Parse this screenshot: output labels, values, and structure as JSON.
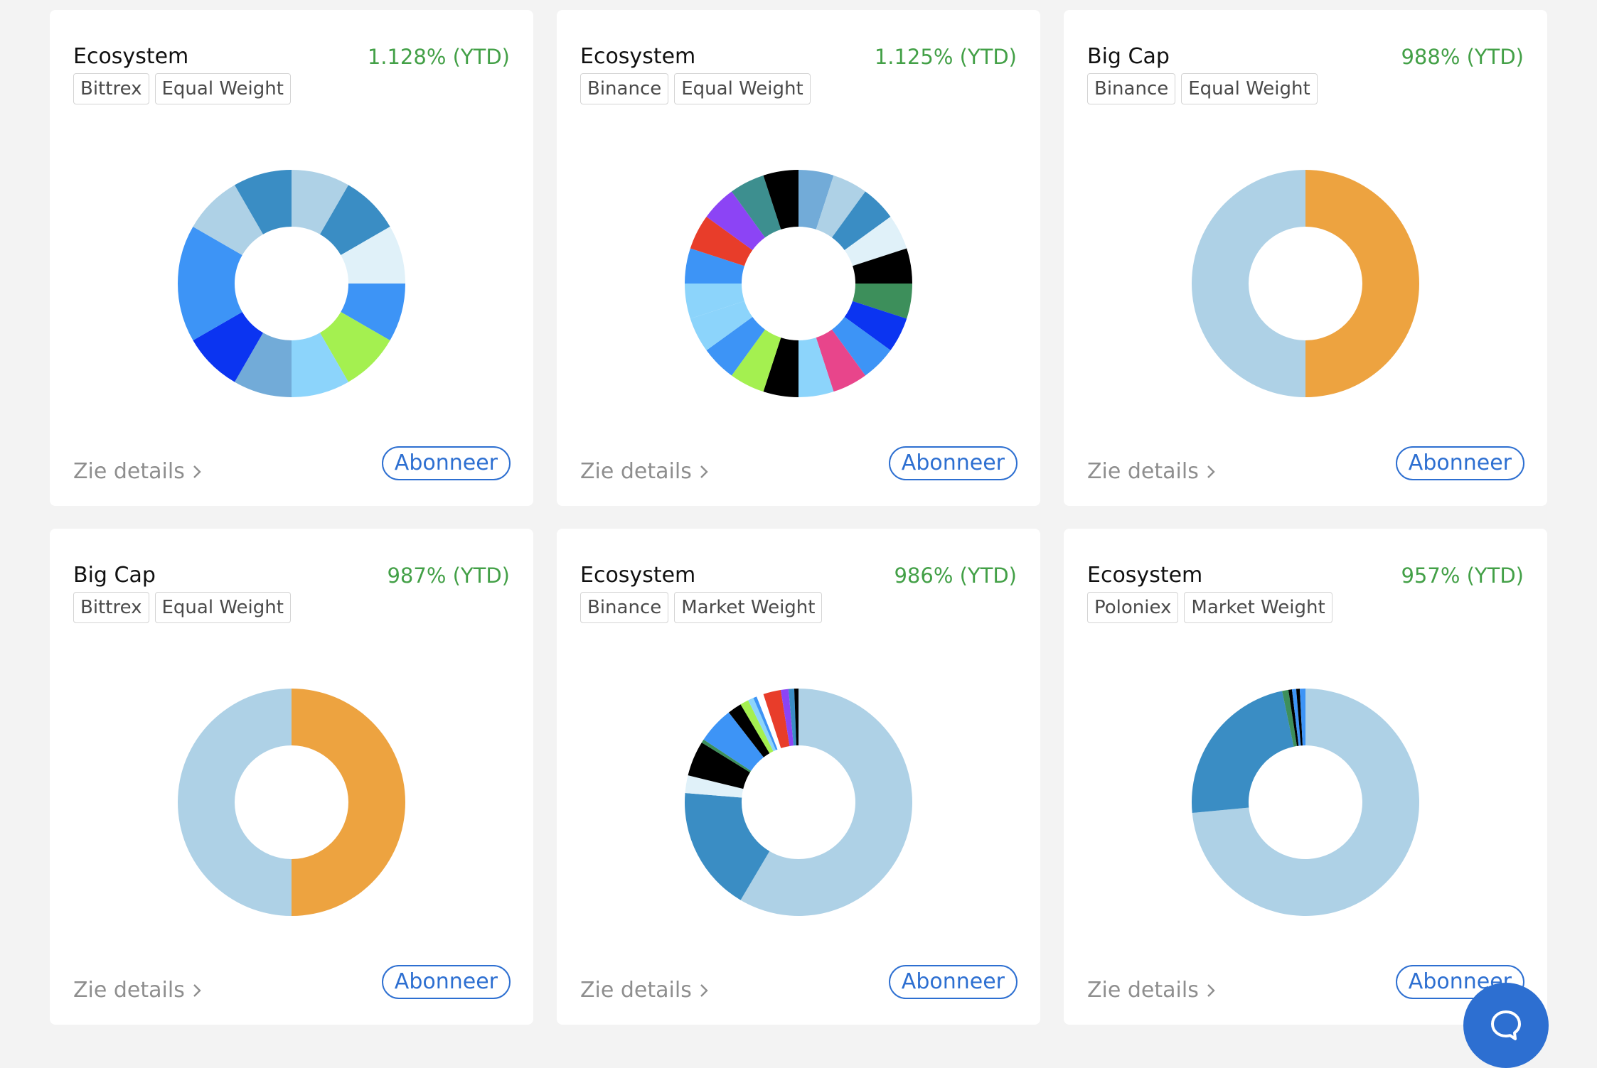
{
  "colors": {
    "accent": "#2d6fd1",
    "positive": "#43a047",
    "muted_text": "#8e8e8e",
    "tag_border": "#d4d4d4"
  },
  "cards": [
    {
      "title": "Ecosystem",
      "performance": "1.128% (YTD)",
      "tags": [
        "Bittrex",
        "Equal Weight"
      ],
      "details_label": "Zie details",
      "subscribe_label": "Abonneer",
      "chart_data": {
        "type": "pie",
        "donut": true,
        "values": [
          1,
          1,
          1,
          1,
          1,
          1,
          1,
          1,
          1,
          1,
          1,
          1
        ],
        "colors": [
          "#aed1e6",
          "#3a8dc4",
          "#e0f1f9",
          "#3d94f6",
          "#a4f050",
          "#8cd4fb",
          "#72abd8",
          "#0b34f1",
          "#3d94f6",
          "#3d94f6",
          "#aed1e6",
          "#3a8dc4"
        ]
      }
    },
    {
      "title": "Ecosystem",
      "performance": "1.125% (YTD)",
      "tags": [
        "Binance",
        "Equal Weight"
      ],
      "details_label": "Zie details",
      "subscribe_label": "Abonneer",
      "chart_data": {
        "type": "pie",
        "donut": true,
        "values": [
          1,
          1,
          1,
          1,
          1,
          1,
          1,
          1,
          1,
          1,
          1,
          1,
          1,
          1,
          1,
          1,
          1,
          1,
          1,
          1
        ],
        "colors": [
          "#72abd8",
          "#aed1e6",
          "#3a8dc4",
          "#e0f1f9",
          "#000000",
          "#3d8f5b",
          "#0b34f1",
          "#3d94f6",
          "#e8458b",
          "#8cd4fb",
          "#000000",
          "#a4f050",
          "#3d94f6",
          "#8cd4fb",
          "#8cd4fb",
          "#3d94f6",
          "#e83d2a",
          "#8c44f5",
          "#3d8f8f",
          "#000000"
        ]
      }
    },
    {
      "title": "Big Cap",
      "performance": "988% (YTD)",
      "tags": [
        "Binance",
        "Equal Weight"
      ],
      "details_label": "Zie details",
      "subscribe_label": "Abonneer",
      "chart_data": {
        "type": "pie",
        "donut": true,
        "values": [
          50,
          50
        ],
        "colors": [
          "#eda340",
          "#aed1e6"
        ]
      }
    },
    {
      "title": "Big Cap",
      "performance": "987% (YTD)",
      "tags": [
        "Bittrex",
        "Equal Weight"
      ],
      "details_label": "Zie details",
      "subscribe_label": "Abonneer",
      "chart_data": {
        "type": "pie",
        "donut": true,
        "values": [
          50,
          50
        ],
        "colors": [
          "#eda340",
          "#aed1e6"
        ]
      }
    },
    {
      "title": "Ecosystem",
      "performance": "986% (YTD)",
      "tags": [
        "Binance",
        "Market Weight"
      ],
      "details_label": "Zie details",
      "subscribe_label": "Abonneer",
      "chart_data": {
        "type": "pie",
        "donut": true,
        "values": [
          58.5,
          17.8,
          2.5,
          5.0,
          0.5,
          5.2,
          2.0,
          1.2,
          0.8,
          0.5,
          1.0,
          2.5,
          1.1,
          0.8,
          0.6
        ],
        "colors": [
          "#aed1e6",
          "#3a8dc4",
          "#e0f1f9",
          "#000000",
          "#3d8f5b",
          "#3d94f6",
          "#000000",
          "#a4f050",
          "#8cd4fb",
          "#3d94f6",
          "#ffffff",
          "#e83d2a",
          "#8c44f5",
          "#3a8dc4",
          "#000000"
        ]
      }
    },
    {
      "title": "Ecosystem",
      "performance": "957% (YTD)",
      "tags": [
        "Poloniex",
        "Market Weight"
      ],
      "details_label": "Zie details",
      "subscribe_label": "Abonneer",
      "chart_data": {
        "type": "pie",
        "donut": true,
        "values": [
          73.5,
          23.2,
          0.9,
          0.5,
          0.6,
          0.5,
          0.8
        ],
        "colors": [
          "#aed1e6",
          "#3a8dc4",
          "#3d8f5b",
          "#000000",
          "#3d94f6",
          "#000000",
          "#3d94f6"
        ]
      }
    }
  ],
  "chat_button": {
    "icon": "chat-bubble-icon"
  }
}
